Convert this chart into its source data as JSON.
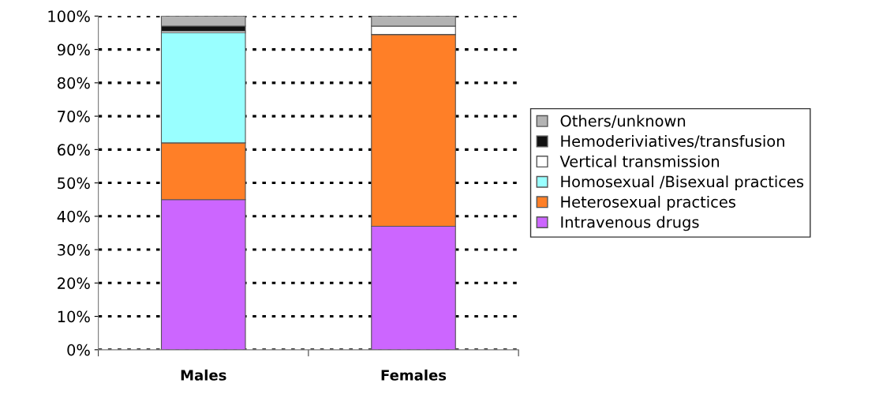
{
  "chart_data": {
    "type": "bar",
    "stacked": true,
    "categories": [
      "Males",
      "Females"
    ],
    "series": [
      {
        "name": "Intravenous drugs",
        "color": "#cc66ff",
        "values": [
          45,
          37
        ]
      },
      {
        "name": "Heterosexual practices",
        "color": "#ff7f27",
        "values": [
          17,
          57.5
        ]
      },
      {
        "name": "Homosexual /Bisexual practices",
        "color": "#99ffff",
        "values": [
          33,
          0
        ]
      },
      {
        "name": "Vertical transmission",
        "color": "#ffffff",
        "values": [
          0.5,
          2.5
        ]
      },
      {
        "name": "Hemoderiviatives/transfusion",
        "color": "#111111",
        "values": [
          1.5,
          0
        ]
      },
      {
        "name": "Others/unknown",
        "color": "#b3b3b3",
        "values": [
          3,
          3
        ]
      }
    ],
    "ylim": [
      0,
      100
    ],
    "yticks": [
      {
        "value": 0,
        "label": "0%"
      },
      {
        "value": 10,
        "label": "10%"
      },
      {
        "value": 20,
        "label": "20%"
      },
      {
        "value": 30,
        "label": "30%"
      },
      {
        "value": 40,
        "label": "40%"
      },
      {
        "value": 50,
        "label": "50%"
      },
      {
        "value": 60,
        "label": "60%"
      },
      {
        "value": 70,
        "label": "70%"
      },
      {
        "value": 80,
        "label": "80%"
      },
      {
        "value": 90,
        "label": "90%"
      },
      {
        "value": 100,
        "label": "100%"
      }
    ],
    "grid": "y",
    "legend": "right"
  }
}
